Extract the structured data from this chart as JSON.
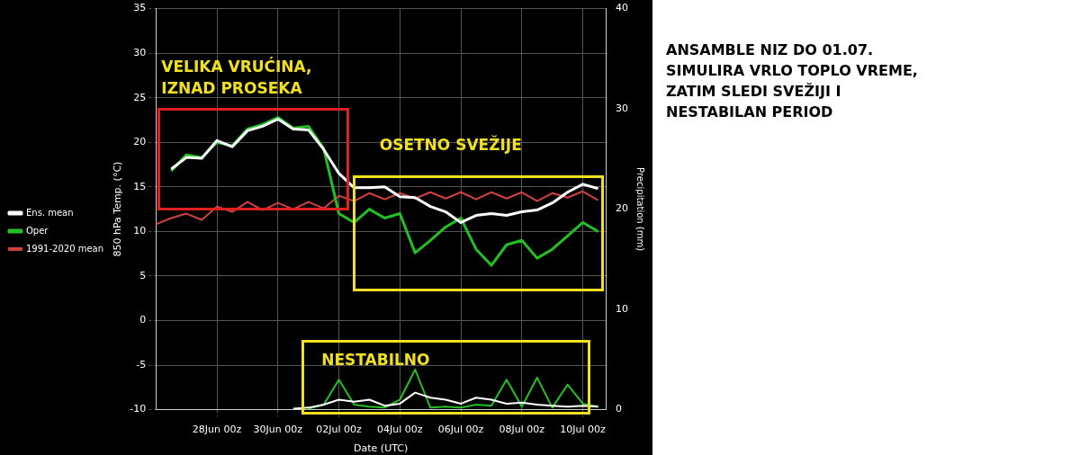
{
  "chart_data": {
    "type": "line",
    "title": "ANSAMBLE NIZ DO 01.07. SIMULIRA VRLO TOPLO VREME, ZATIM SLEDI SVEŽIJI I NESTABILAN PERIOD",
    "xlabel": "Date (UTC)",
    "ylabel": "850 hPa Temp. (°C)",
    "y2label": "Precipitation (mm)",
    "annotations": [
      "VELIKA VRUĆINA, IZNAD PROSEKA",
      "OSETNO SVEŽIJE",
      "NESTABILNO"
    ],
    "x": [
      "--06-26T12:00",
      "--06-27T00:00",
      "--06-27T12:00",
      "--06-28T00:00",
      "--06-28T12:00",
      "--06-29T00:00",
      "--06-29T12:00",
      "--06-30T00:00",
      "--06-30T12:00",
      "--07-01T00:00",
      "--07-01T12:00",
      "--07-02T00:00",
      "--07-02T12:00",
      "--07-03T00:00",
      "--07-03T12:00",
      "--07-04T00:00",
      "--07-04T12:00",
      "--07-05T00:00",
      "--07-05T12:00",
      "--07-06T00:00",
      "--07-06T12:00",
      "--07-07T00:00",
      "--07-07T12:00",
      "--07-08T00:00",
      "--07-08T12:00",
      "--07-09T00:00",
      "--07-09T12:00",
      "--07-10T00:00",
      "--07-10T12:00"
    ],
    "series": [
      {
        "name": "1991-2020 mean",
        "color": "#d04040",
        "x": [
          "--06-26T00:00",
          "--06-26T12:00",
          "--06-27T00:00",
          "--06-27T12:00",
          "--06-28T00:00",
          "--06-28T12:00",
          "--06-29T00:00",
          "--06-29T12:00",
          "--06-30T00:00",
          "--06-30T12:00",
          "--07-01T00:00",
          "--07-01T12:00",
          "--07-02T00:00",
          "--07-02T12:00",
          "--07-03T00:00",
          "--07-03T12:00",
          "--07-04T00:00",
          "--07-04T12:00",
          "--07-05T00:00",
          "--07-05T12:00",
          "--07-06T00:00",
          "--07-06T12:00",
          "--07-07T00:00",
          "--07-07T12:00",
          "--07-08T00:00",
          "--07-08T12:00",
          "--07-09T00:00",
          "--07-09T12:00",
          "--07-10T00:00",
          "--07-10T12:00"
        ],
        "values": [
          10.8,
          11.5,
          12.0,
          11.3,
          12.8,
          12.2,
          13.3,
          12.4,
          13.2,
          12.5,
          13.3,
          12.6,
          14.0,
          13.4,
          14.3,
          13.6,
          14.3,
          13.7,
          14.4,
          13.7,
          14.4,
          13.6,
          14.4,
          13.7,
          14.4,
          13.4,
          14.3,
          13.8,
          14.5,
          13.5
        ]
      },
      {
        "name": "Oper",
        "color": "#22c022",
        "values": [
          16.8,
          18.6,
          18.3,
          20.0,
          19.6,
          21.5,
          22.0,
          22.8,
          21.6,
          21.8,
          19.3,
          12.0,
          11.0,
          12.5,
          11.5,
          12.0,
          7.6,
          9.0,
          10.5,
          11.5,
          8.0,
          6.2,
          8.5,
          9.0,
          7.0,
          8.0,
          9.5,
          11.0,
          10.0
        ]
      },
      {
        "name": "Ens. mean",
        "color": "#ffffff",
        "values": [
          17.0,
          18.3,
          18.2,
          20.2,
          19.5,
          21.3,
          21.8,
          22.6,
          21.5,
          21.4,
          19.2,
          16.5,
          14.9,
          14.9,
          15.0,
          13.9,
          13.8,
          12.8,
          12.2,
          11.0,
          11.8,
          12.0,
          11.8,
          12.2,
          12.4,
          13.2,
          14.4,
          15.3,
          14.8
        ]
      },
      {
        "color": "#22c022",
        "axis": "y2",
        "values": [
          null,
          null,
          null,
          null,
          null,
          null,
          null,
          null,
          null,
          0.1,
          0.5,
          3.0,
          0.5,
          0.3,
          0.2,
          1.0,
          4.0,
          0.2,
          0.3,
          0.2,
          0.5,
          0.4,
          3.0,
          0.3,
          3.2,
          0.2,
          2.5,
          0.6,
          0.3
        ]
      },
      {
        "color": "#ffffff",
        "axis": "y2",
        "values": [
          null,
          null,
          null,
          null,
          null,
          null,
          null,
          null,
          0.1,
          0.2,
          0.5,
          1.0,
          0.8,
          1.0,
          0.4,
          0.6,
          1.7,
          1.2,
          1.0,
          0.6,
          1.2,
          1.0,
          0.6,
          0.7,
          0.5,
          0.4,
          0.3,
          0.4,
          0.3
        ]
      }
    ],
    "xlim": [
      "--06-26T00:00",
      "--07-10T18:00"
    ],
    "xticks": [
      {
        "value": "--06-28",
        "label": "28Jun 00z"
      },
      {
        "value": "--06-30",
        "label": "30Jun 00z"
      },
      {
        "value": "--07-02",
        "label": "02Jul 00z"
      },
      {
        "value": "--07-04",
        "label": "04Jul 00z"
      },
      {
        "value": "--07-06",
        "label": "06Jul 00z"
      },
      {
        "value": "--07-08",
        "label": "08Jul 00z"
      },
      {
        "value": "--07-10",
        "label": "10Jul 00z"
      }
    ],
    "ylim": [
      -10,
      35
    ],
    "yticks": [
      -10,
      -5,
      0,
      5,
      10,
      15,
      20,
      25,
      30,
      35
    ],
    "y2lim": [
      0,
      40
    ],
    "y2ticks": [
      0,
      10,
      20,
      30,
      40
    ],
    "grid": true,
    "legend": "left",
    "marker": "none",
    "line_style": "solid"
  }
}
